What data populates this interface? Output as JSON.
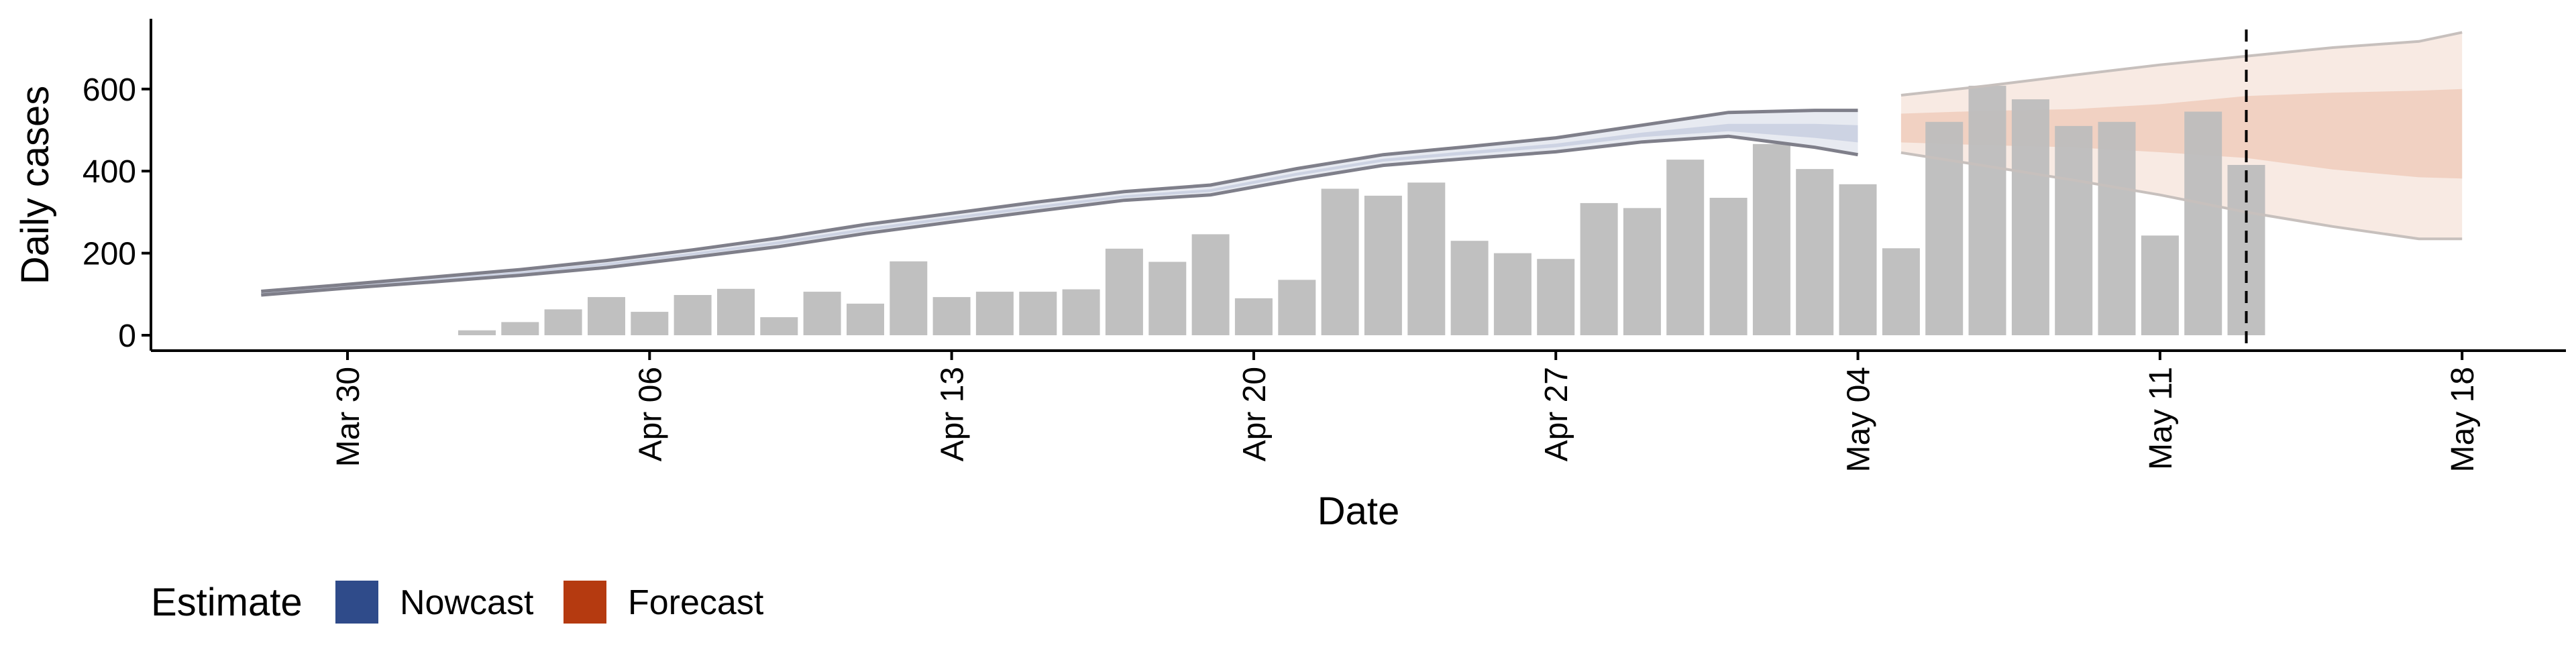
{
  "chart_data": {
    "type": "bar",
    "xlabel": "Date",
    "ylabel": "Daily cases",
    "ylim": [
      0,
      700
    ],
    "yticks": [
      0,
      200,
      400,
      600
    ],
    "xticks": [
      "Mar 30",
      "Apr 06",
      "Apr 13",
      "Apr 20",
      "Apr 27",
      "May 04",
      "May 11",
      "May 18"
    ],
    "grid": false,
    "legend": {
      "title": "Estimate",
      "position": "bottom-left",
      "entries": [
        {
          "name": "Nowcast",
          "color": "#2f4b8a"
        },
        {
          "name": "Forecast",
          "color": "#b53a10"
        }
      ]
    },
    "bars": {
      "color": "#bdbdbd",
      "dates": [
        "2020-04-02",
        "2020-04-03",
        "2020-04-04",
        "2020-04-05",
        "2020-04-06",
        "2020-04-07",
        "2020-04-08",
        "2020-04-09",
        "2020-04-10",
        "2020-04-11",
        "2020-04-12",
        "2020-04-13",
        "2020-04-14",
        "2020-04-15",
        "2020-04-16",
        "2020-04-17",
        "2020-04-18",
        "2020-04-19",
        "2020-04-20",
        "2020-04-21",
        "2020-04-22",
        "2020-04-23",
        "2020-04-24",
        "2020-04-25",
        "2020-04-26",
        "2020-04-27",
        "2020-04-28",
        "2020-04-29",
        "2020-04-30",
        "2020-05-01",
        "2020-05-02",
        "2020-05-03",
        "2020-05-04",
        "2020-05-05",
        "2020-05-06",
        "2020-05-07",
        "2020-05-08",
        "2020-05-09",
        "2020-05-10",
        "2020-05-11",
        "2020-05-12",
        "2020-05-13"
      ],
      "values": [
        12,
        32,
        63,
        93,
        57,
        98,
        113,
        44,
        106,
        77,
        180,
        93,
        106,
        106,
        112,
        211,
        179,
        246,
        90,
        135,
        357,
        340,
        372,
        230,
        200,
        186,
        322,
        310,
        428,
        335,
        466,
        405,
        368,
        212,
        520,
        608,
        575,
        510,
        520,
        243,
        545,
        415
      ]
    },
    "series": [
      {
        "name": "Nowcast",
        "color": "#2f4b8a",
        "x": [
          "2020-03-28",
          "2020-03-30",
          "2020-04-01",
          "2020-04-03",
          "2020-04-05",
          "2020-04-07",
          "2020-04-09",
          "2020-04-11",
          "2020-04-13",
          "2020-04-15",
          "2020-04-17",
          "2020-04-19",
          "2020-04-21",
          "2020-04-23",
          "2020-04-25",
          "2020-04-27",
          "2020-04-29",
          "2020-05-01",
          "2020-05-03",
          "2020-05-04"
        ],
        "lower_outer": [
          98,
          115,
          130,
          146,
          165,
          190,
          216,
          248,
          276,
          303,
          329,
          342,
          380,
          414,
          431,
          447,
          471,
          485,
          458,
          440
        ],
        "lower_inner": [
          101,
          118,
          134,
          150,
          170,
          195,
          222,
          254,
          282,
          309,
          335,
          349,
          389,
          423,
          441,
          458,
          483,
          497,
          481,
          470
        ],
        "upper_inner": [
          104,
          121,
          138,
          155,
          176,
          201,
          229,
          261,
          289,
          316,
          341,
          356,
          396,
          430,
          449,
          467,
          494,
          515,
          515,
          512
        ],
        "upper_outer": [
          107,
          124,
          142,
          160,
          182,
          208,
          237,
          270,
          297,
          325,
          350,
          366,
          406,
          440,
          460,
          481,
          512,
          543,
          548,
          548
        ]
      },
      {
        "name": "Forecast",
        "color": "#b53a10",
        "x": [
          "2020-05-05",
          "2020-05-07",
          "2020-05-09",
          "2020-05-11",
          "2020-05-13",
          "2020-05-15",
          "2020-05-17",
          "2020-05-18"
        ],
        "lower_outer": [
          445,
          412,
          378,
          342,
          300,
          265,
          235,
          235
        ],
        "lower_inner": [
          470,
          463,
          458,
          446,
          432,
          404,
          385,
          382
        ],
        "upper_inner": [
          540,
          547,
          551,
          563,
          583,
          591,
          596,
          600
        ],
        "upper_outer": [
          585,
          608,
          634,
          659,
          680,
          701,
          716,
          738
        ]
      }
    ],
    "reference_line": {
      "date": "2020-05-13",
      "style": "dashed",
      "color": "#000000"
    }
  }
}
